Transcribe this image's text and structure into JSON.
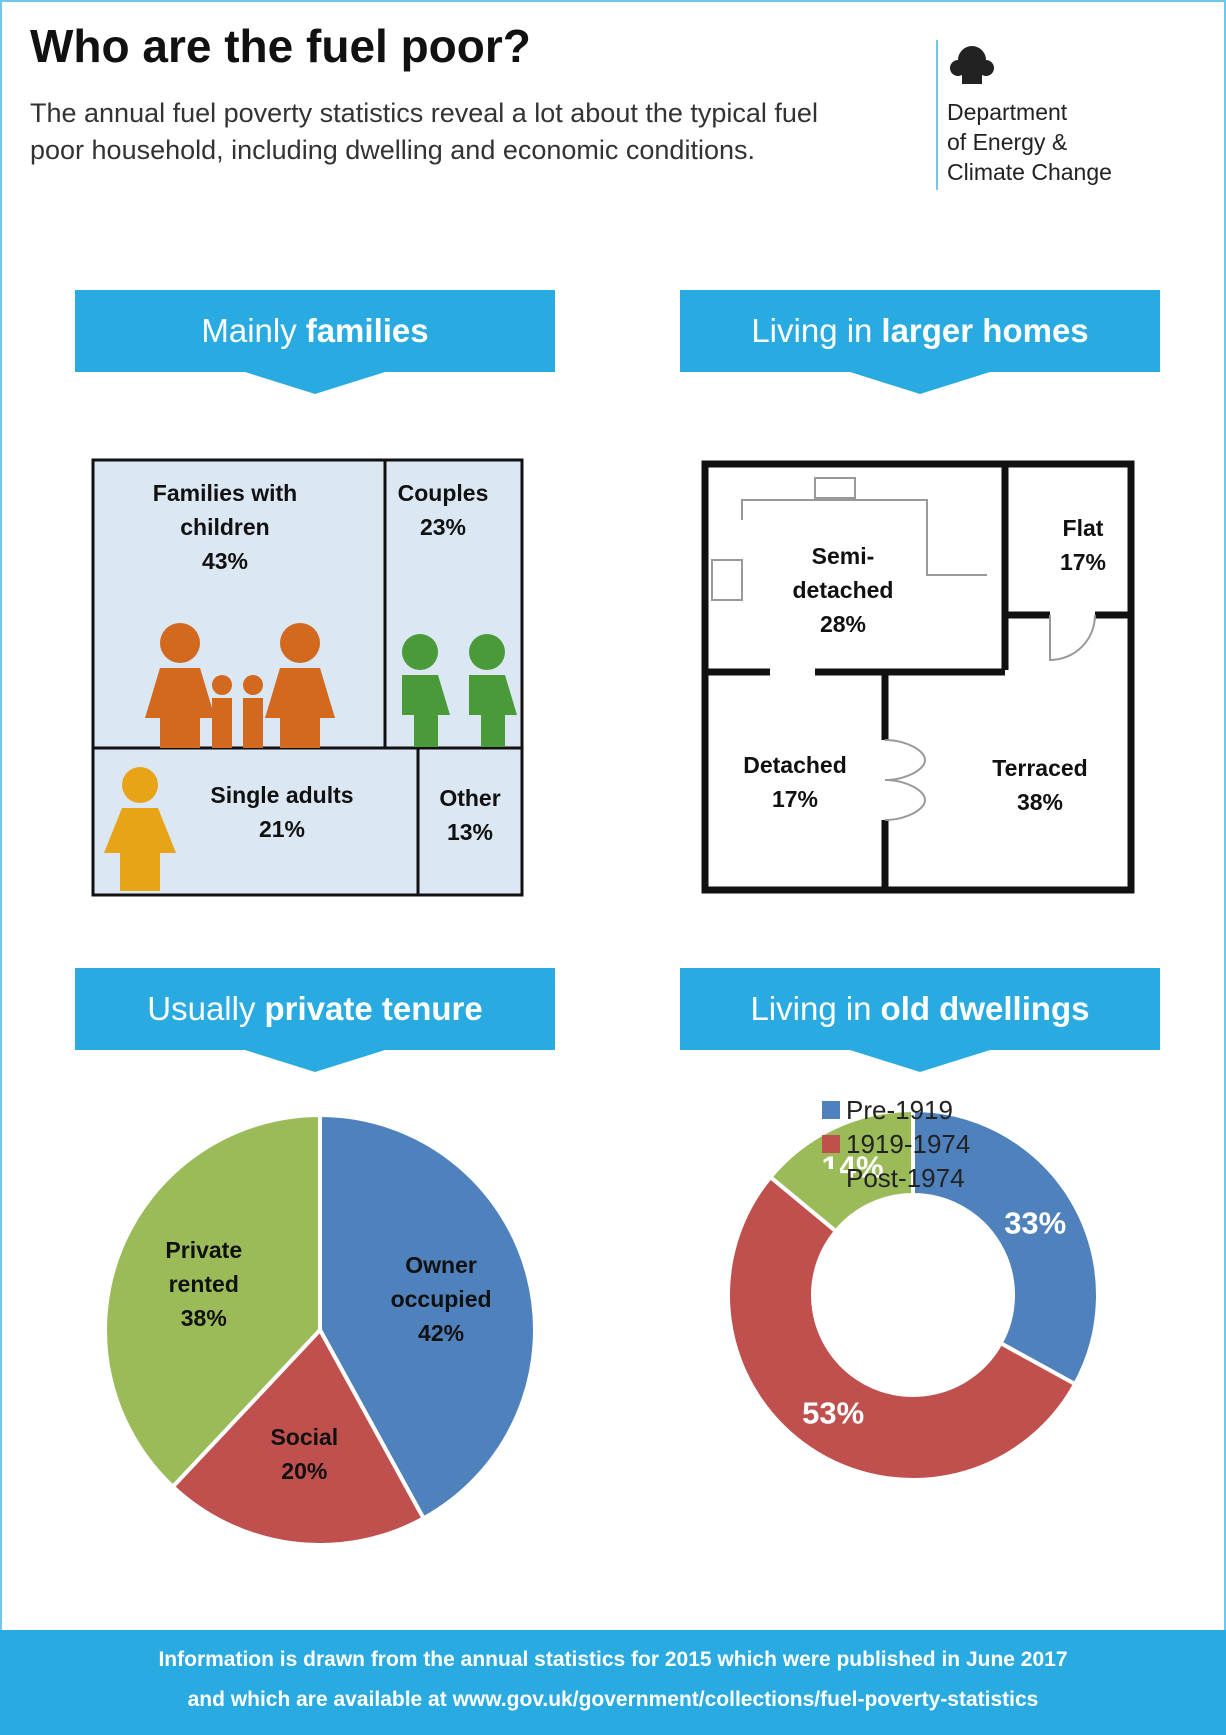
{
  "header": {
    "title": "Who are the fuel poor?",
    "subtitle": "The annual fuel poverty statistics reveal a lot about the typical fuel poor household, including dwelling and economic conditions.",
    "logo": [
      "Department",
      "of Energy &",
      "Climate Change"
    ]
  },
  "sections": [
    {
      "heading": {
        "text": "Mainly",
        "bold": "families"
      },
      "boxes": [
        {
          "label": "Families with children",
          "value": "43%"
        },
        {
          "label": "Couples",
          "value": "23%"
        },
        {
          "label": "Single adults",
          "value": "21%"
        },
        {
          "label": "Other",
          "value": "13%"
        }
      ]
    },
    {
      "heading": {
        "text": "Living in",
        "bold": "larger homes"
      },
      "rooms": [
        {
          "label": "Semi-detached",
          "value": "28%"
        },
        {
          "label": "Flat",
          "value": "17%"
        },
        {
          "label": "Detached",
          "value": "17%"
        },
        {
          "label": "Terraced",
          "value": "38%"
        }
      ]
    },
    {
      "heading": {
        "text": "Usually",
        "bold": "private tenure"
      }
    },
    {
      "heading": {
        "text": "Living in",
        "bold": "old dwellings"
      }
    }
  ],
  "chart_data": [
    {
      "type": "pie",
      "categories": [
        "Owner occupied",
        "Social",
        "Private rented"
      ],
      "values": [
        42,
        20,
        38
      ],
      "value_labels": [
        "42%",
        "20%",
        "38%"
      ],
      "colors": [
        "#4f81bd",
        "#c0504d",
        "#9bbb59"
      ]
    },
    {
      "type": "donut",
      "categories": [
        "Pre-1919",
        "1919-1974",
        "Post-1974"
      ],
      "values": [
        33,
        53,
        14
      ],
      "value_labels": [
        "33%",
        "53%",
        "14%"
      ],
      "colors": [
        "#4f81bd",
        "#c0504d",
        "#9bbb59"
      ],
      "legend": "top"
    }
  ],
  "footer": [
    "Information is drawn from the annual statistics for 2015 which were published in June 2017",
    "and which are available at www.gov.uk/government/collections/fuel-poverty-statistics"
  ]
}
